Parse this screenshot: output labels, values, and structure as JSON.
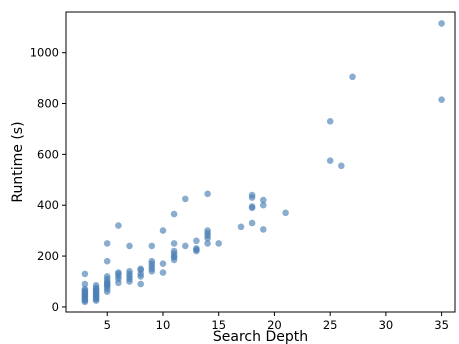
{
  "chart_data": {
    "type": "scatter",
    "title": "",
    "xlabel": "Search Depth",
    "ylabel": "Runtime (s)",
    "xlim": [
      1.3,
      36.2
    ],
    "ylim": [
      -20,
      1160
    ],
    "xticks": [
      5,
      10,
      15,
      20,
      25,
      30,
      35
    ],
    "yticks": [
      0,
      200,
      400,
      600,
      800,
      1000
    ],
    "grid": false,
    "legend": "none",
    "marker_color": "#4a7fb5",
    "points": [
      [
        3,
        20
      ],
      [
        3,
        25
      ],
      [
        3,
        30
      ],
      [
        3,
        35
      ],
      [
        3,
        40
      ],
      [
        3,
        45
      ],
      [
        3,
        50
      ],
      [
        3,
        55
      ],
      [
        3,
        60
      ],
      [
        3,
        65
      ],
      [
        3,
        70
      ],
      [
        3,
        90
      ],
      [
        3,
        130
      ],
      [
        4,
        25
      ],
      [
        4,
        30
      ],
      [
        4,
        35
      ],
      [
        4,
        40
      ],
      [
        4,
        45
      ],
      [
        4,
        50
      ],
      [
        4,
        55
      ],
      [
        4,
        60
      ],
      [
        4,
        65
      ],
      [
        4,
        70
      ],
      [
        4,
        75
      ],
      [
        4,
        85
      ],
      [
        5,
        60
      ],
      [
        5,
        70
      ],
      [
        5,
        80
      ],
      [
        5,
        85
      ],
      [
        5,
        90
      ],
      [
        5,
        95
      ],
      [
        5,
        100
      ],
      [
        5,
        110
      ],
      [
        5,
        120
      ],
      [
        5,
        180
      ],
      [
        5,
        250
      ],
      [
        6,
        95
      ],
      [
        6,
        110
      ],
      [
        6,
        120
      ],
      [
        6,
        130
      ],
      [
        6,
        135
      ],
      [
        6,
        320
      ],
      [
        7,
        100
      ],
      [
        7,
        110
      ],
      [
        7,
        120
      ],
      [
        7,
        130
      ],
      [
        7,
        140
      ],
      [
        7,
        240
      ],
      [
        8,
        90
      ],
      [
        8,
        120
      ],
      [
        8,
        130
      ],
      [
        8,
        145
      ],
      [
        8,
        150
      ],
      [
        9,
        140
      ],
      [
        9,
        150
      ],
      [
        9,
        160
      ],
      [
        9,
        170
      ],
      [
        9,
        180
      ],
      [
        9,
        240
      ],
      [
        10,
        135
      ],
      [
        10,
        170
      ],
      [
        10,
        300
      ],
      [
        11,
        185
      ],
      [
        11,
        195
      ],
      [
        11,
        200
      ],
      [
        11,
        210
      ],
      [
        11,
        220
      ],
      [
        11,
        250
      ],
      [
        11,
        365
      ],
      [
        12,
        240
      ],
      [
        12,
        425
      ],
      [
        13,
        220
      ],
      [
        13,
        225
      ],
      [
        13,
        230
      ],
      [
        13,
        260
      ],
      [
        14,
        250
      ],
      [
        14,
        270
      ],
      [
        14,
        280
      ],
      [
        14,
        290
      ],
      [
        14,
        300
      ],
      [
        14,
        445
      ],
      [
        15,
        250
      ],
      [
        17,
        315
      ],
      [
        18,
        330
      ],
      [
        18,
        390
      ],
      [
        18,
        395
      ],
      [
        18,
        430
      ],
      [
        18,
        440
      ],
      [
        19,
        305
      ],
      [
        19,
        400
      ],
      [
        19,
        420
      ],
      [
        21,
        370
      ],
      [
        25,
        575
      ],
      [
        25,
        730
      ],
      [
        26,
        555
      ],
      [
        27,
        905
      ],
      [
        35,
        815
      ],
      [
        35,
        1115
      ]
    ]
  }
}
